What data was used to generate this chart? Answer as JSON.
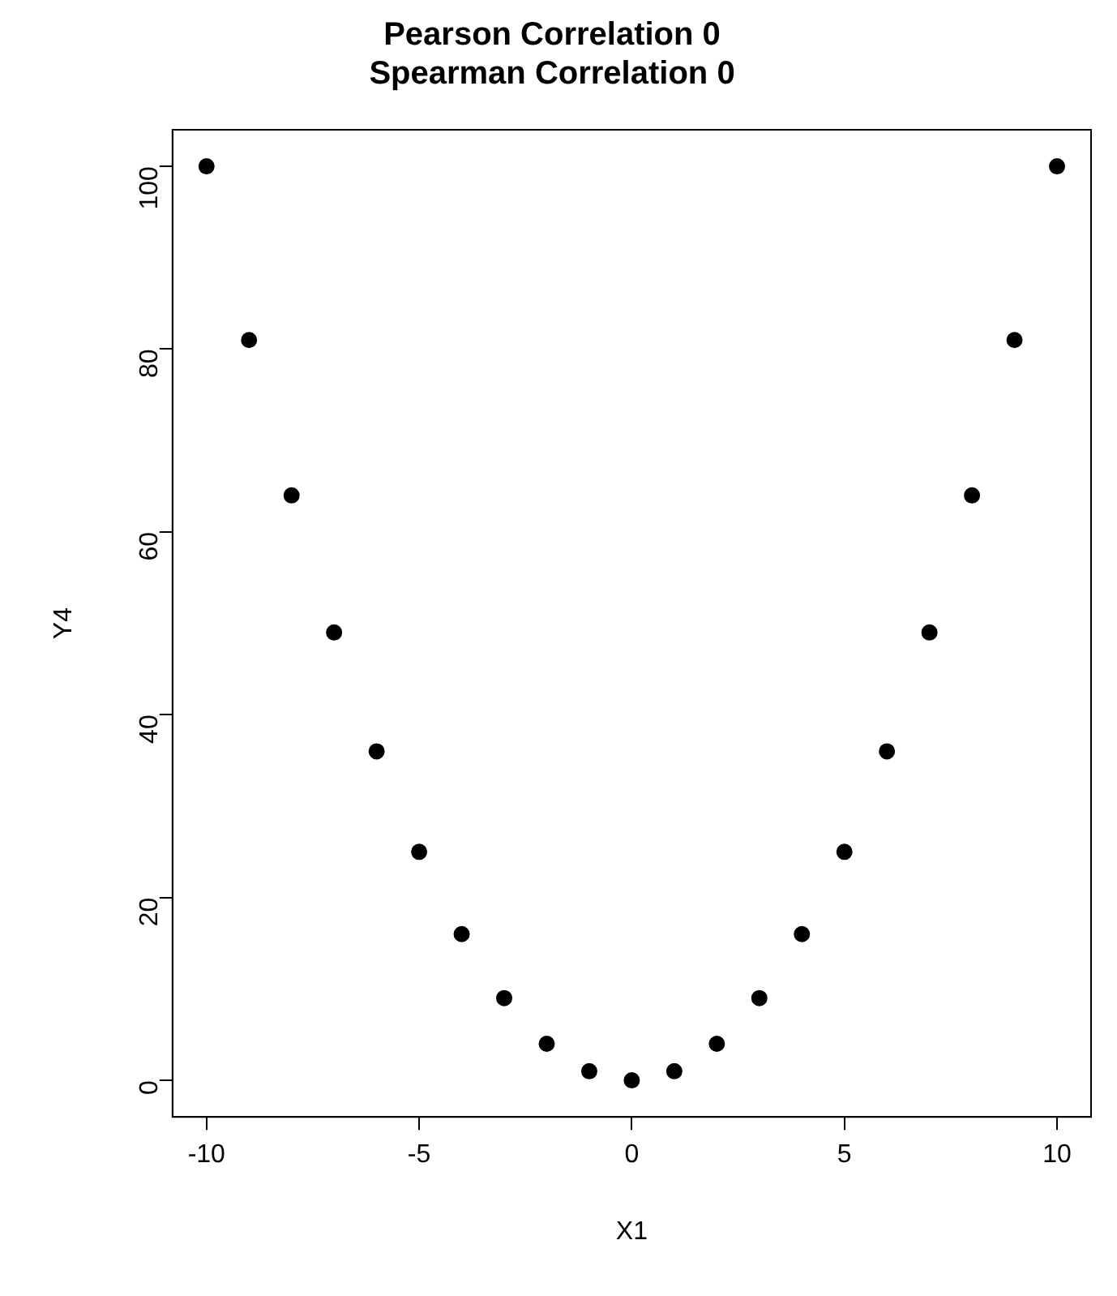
{
  "chart_data": {
    "type": "scatter",
    "title": "Pearson Correlation 0\nSpearman Correlation 0",
    "xlabel": "X1",
    "ylabel": "Y4",
    "x": [
      -10,
      -9,
      -8,
      -7,
      -6,
      -5,
      -4,
      -3,
      -2,
      -1,
      0,
      1,
      2,
      3,
      4,
      5,
      6,
      7,
      8,
      9,
      10
    ],
    "series": [
      {
        "color": "#000000",
        "values": [
          100,
          81,
          64,
          49,
          36,
          25,
          16,
          9,
          4,
          1,
          0,
          1,
          4,
          9,
          16,
          25,
          36,
          49,
          64,
          81,
          100
        ]
      }
    ],
    "xlim": [
      -10.8,
      10.8
    ],
    "ylim": [
      -4,
      104
    ],
    "xticks": [
      -10,
      -5,
      0,
      5,
      10
    ],
    "yticks": [
      0,
      20,
      40,
      60,
      80,
      100
    ],
    "grid": false,
    "legend": false,
    "marker": "circle"
  }
}
